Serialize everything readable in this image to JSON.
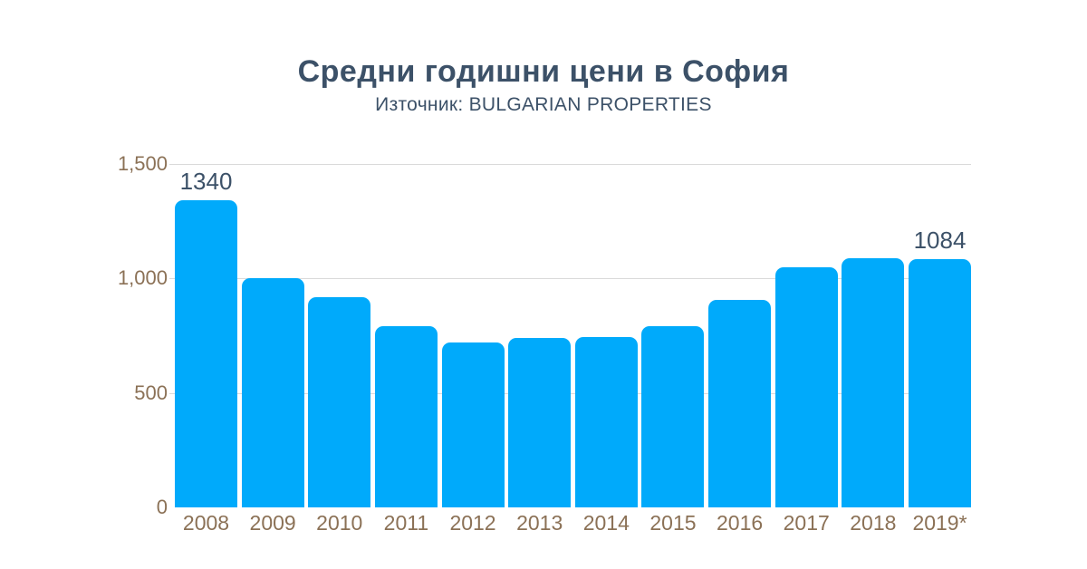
{
  "header": {
    "title": "Средни годишни цени в София",
    "subtitle": "Източник: BULGARIAN PROPERTIES"
  },
  "colors": {
    "background": "#FFFFFF",
    "bar": "#00AAFB",
    "title_text": "#3C5168",
    "axis_text": "#8B7156",
    "gridline": "#DADADA"
  },
  "chart_data": {
    "type": "bar",
    "title": "Средни годишни цени в София",
    "subtitle": "Източник: BULGARIAN PROPERTIES",
    "categories": [
      "2008",
      "2009",
      "2010",
      "2011",
      "2012",
      "2013",
      "2014",
      "2015",
      "2016",
      "2017",
      "2018",
      "2019*"
    ],
    "values": [
      1340,
      1000,
      920,
      790,
      720,
      740,
      745,
      790,
      905,
      1050,
      1090,
      1084
    ],
    "data_labels": {
      "2008": "1340",
      "2019*": "1084"
    },
    "ylim": [
      0,
      1500
    ],
    "yticks": [
      0,
      500,
      1000,
      1500
    ],
    "ytick_labels": [
      "0",
      "500",
      "1,000",
      "1,500"
    ],
    "xlabel": "",
    "ylabel": "",
    "grid": "horizontal-only",
    "legend": "none"
  }
}
